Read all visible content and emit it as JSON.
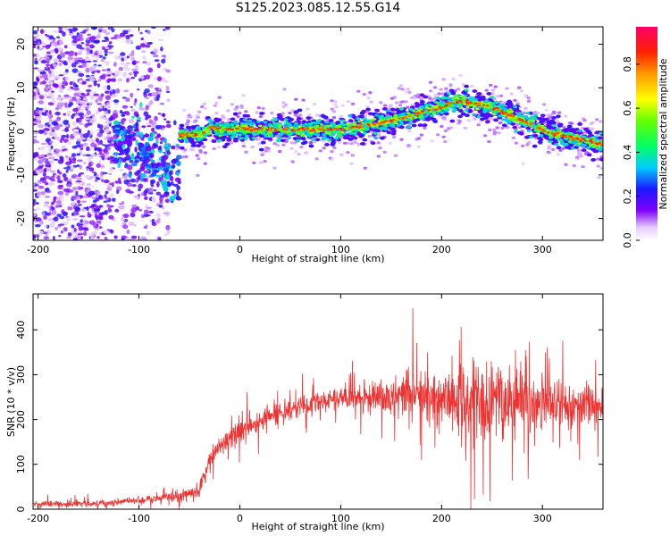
{
  "title": "S125.2023.085.12.55.G14",
  "chart_data": [
    {
      "type": "heatmap",
      "xlabel": "Height of straight line (km)",
      "ylabel": "Frequency (Hz)",
      "xlim": [
        -205,
        360
      ],
      "ylim": [
        -25,
        24
      ],
      "xticks": [
        -200,
        -100,
        0,
        100,
        200,
        300
      ],
      "yticks": [
        -20,
        -10,
        0,
        10,
        20
      ],
      "colorbar": {
        "label": "Normalized spectral amplitude",
        "range": [
          0,
          0.97
        ],
        "ticks": [
          "0.0",
          "0.2",
          "0.4",
          "0.6",
          "0.8"
        ],
        "colormap": "rainbow"
      },
      "ridge": {
        "x": [
          -60,
          -50,
          -40,
          -30,
          -20,
          0,
          50,
          100,
          130,
          150,
          175,
          200,
          215,
          230,
          250,
          270,
          290,
          310,
          330,
          350,
          360
        ],
        "frequency": [
          -1.0,
          -0.5,
          -1.0,
          1.0,
          0.5,
          0.5,
          0.5,
          0.5,
          1.5,
          2.5,
          4.0,
          5.5,
          7.0,
          6.5,
          5.5,
          3.5,
          1.5,
          -0.5,
          -1.5,
          -2.5,
          -3.0
        ]
      }
    },
    {
      "type": "line",
      "xlabel": "Height of straight line (km)",
      "ylabel": "SNR (10 * v/v)",
      "xlim": [
        -205,
        360
      ],
      "ylim": [
        0,
        480
      ],
      "xticks": [
        -200,
        -100,
        0,
        100,
        200,
        300
      ],
      "yticks": [
        0,
        100,
        200,
        300,
        400
      ],
      "color": "#ee3333",
      "trend": {
        "x": [
          -205,
          -150,
          -100,
          -60,
          -40,
          -30,
          -20,
          0,
          20,
          50,
          80,
          100,
          150,
          200,
          250,
          300,
          360
        ],
        "y": [
          12,
          12,
          20,
          30,
          40,
          110,
          140,
          175,
          200,
          225,
          240,
          250,
          250,
          245,
          235,
          235,
          230
        ]
      },
      "spread": {
        "x": [
          -205,
          -100,
          -40,
          0,
          100,
          150,
          200,
          250,
          300,
          360
        ],
        "y": [
          6,
          8,
          15,
          25,
          20,
          35,
          70,
          90,
          60,
          40
        ]
      }
    }
  ]
}
